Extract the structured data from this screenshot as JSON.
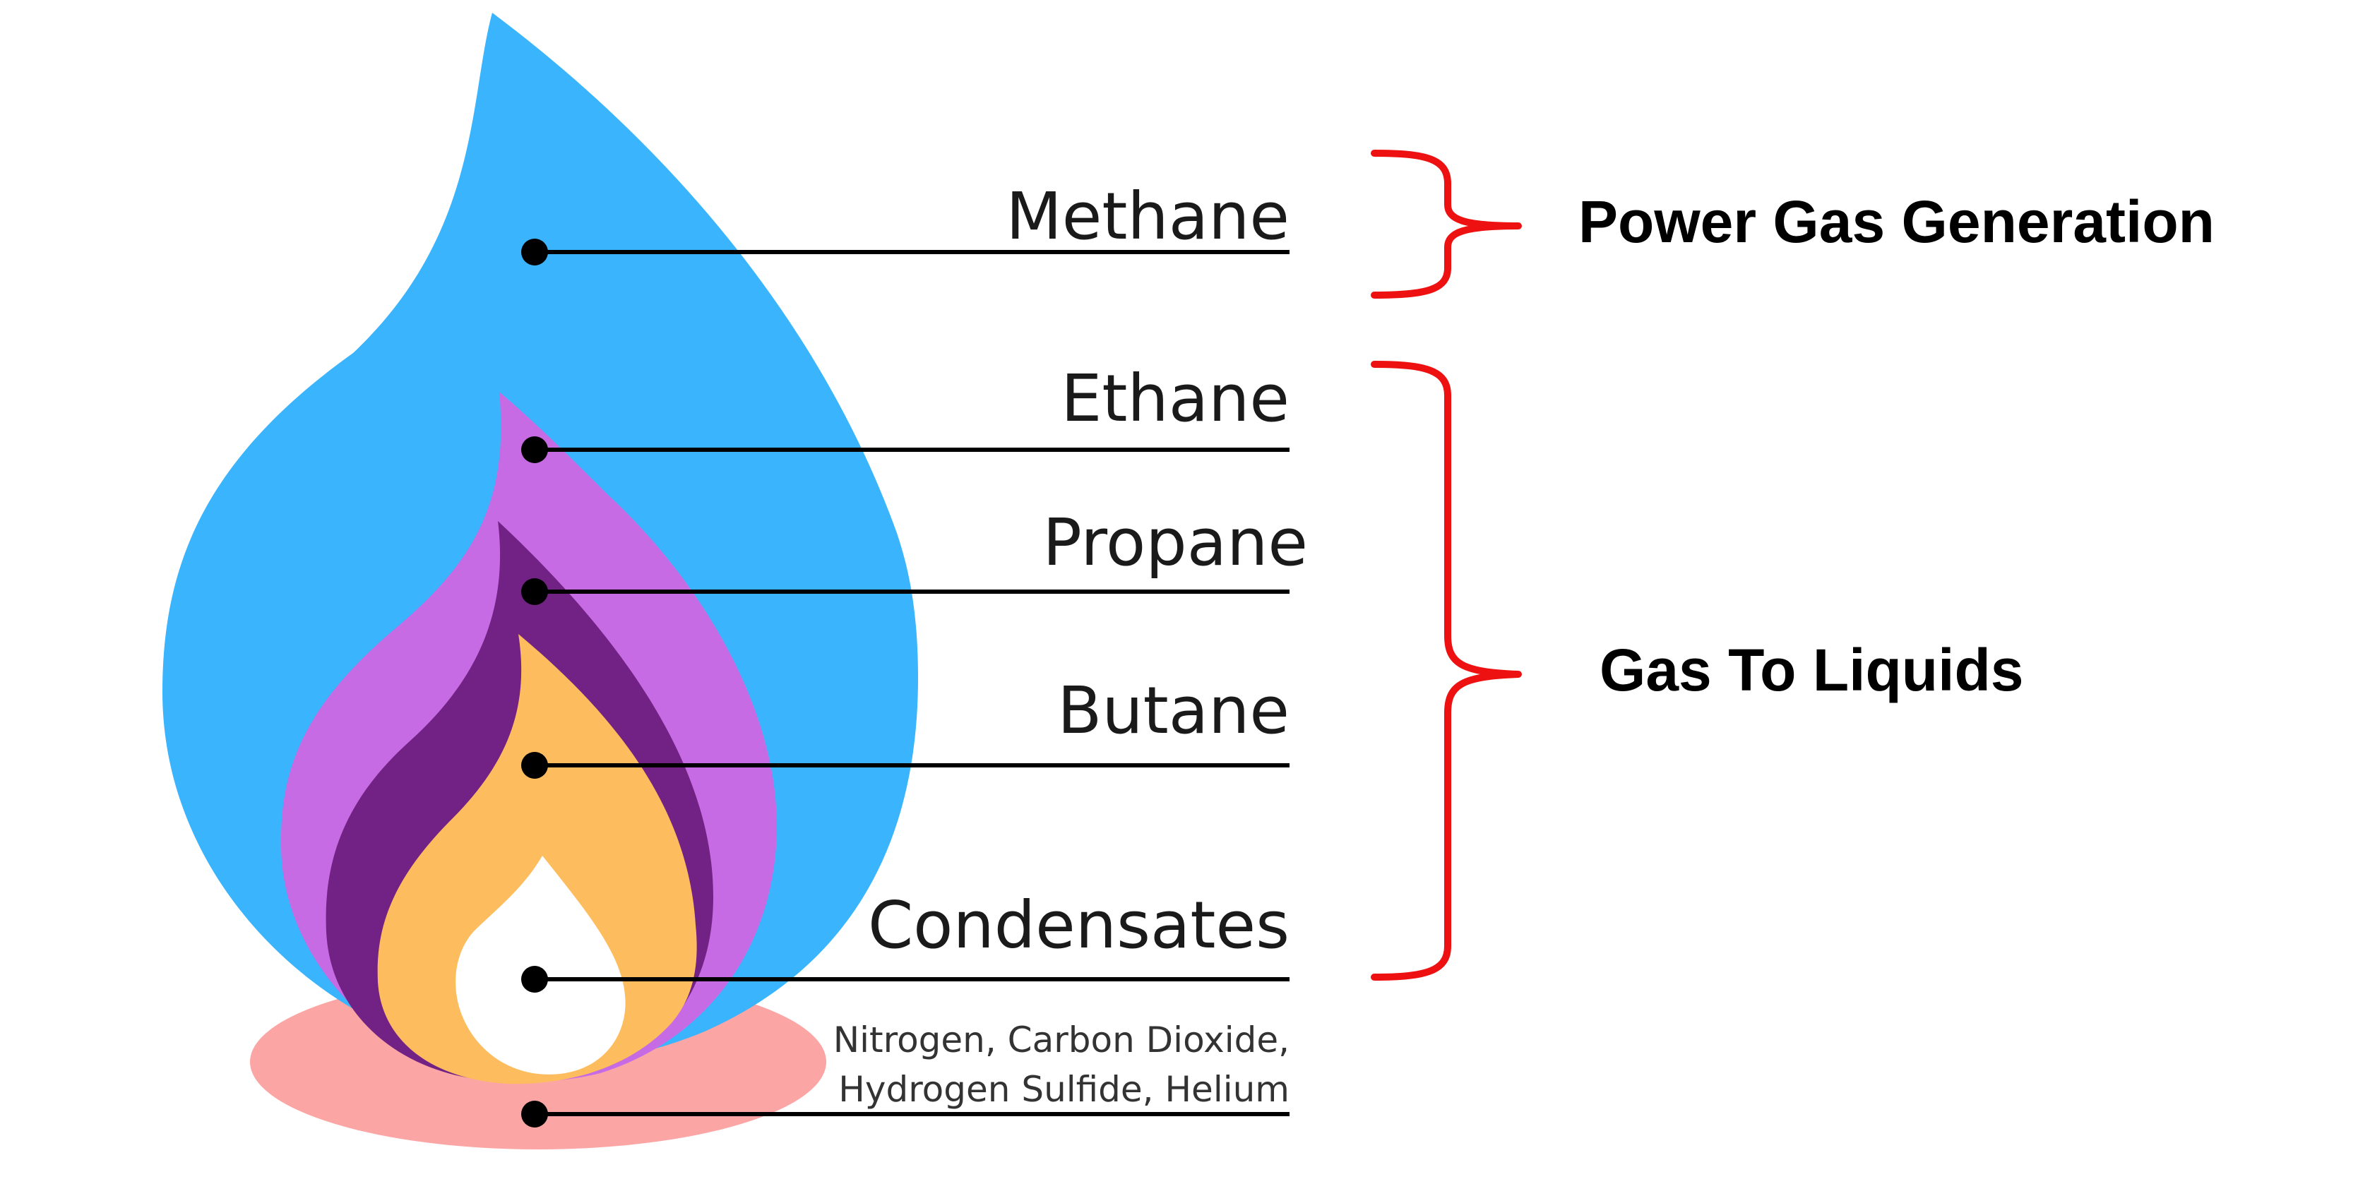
{
  "layers": [
    {
      "id": "methane",
      "label": "Methane"
    },
    {
      "id": "ethane",
      "label": "Ethane"
    },
    {
      "id": "propane",
      "label": "Propane"
    },
    {
      "id": "butane",
      "label": "Butane"
    },
    {
      "id": "condensates",
      "label": "Condensates"
    },
    {
      "id": "other-gases",
      "label_line1": "Nitrogen, Carbon Dioxide,",
      "label_line2": "Hydrogen Sulfide, Helium"
    }
  ],
  "groups": [
    {
      "id": "power-gas",
      "label": "Power Gas Generation"
    },
    {
      "id": "gtl",
      "label": "Gas To Liquids"
    }
  ],
  "colors": {
    "methane": "#3ab4fd",
    "ethane": "#c76be4",
    "propane": "#722284",
    "butane": "#fdbd5e",
    "condensates": "#ffffff",
    "base": "#fca5a5",
    "bracket": "#ee1111"
  }
}
